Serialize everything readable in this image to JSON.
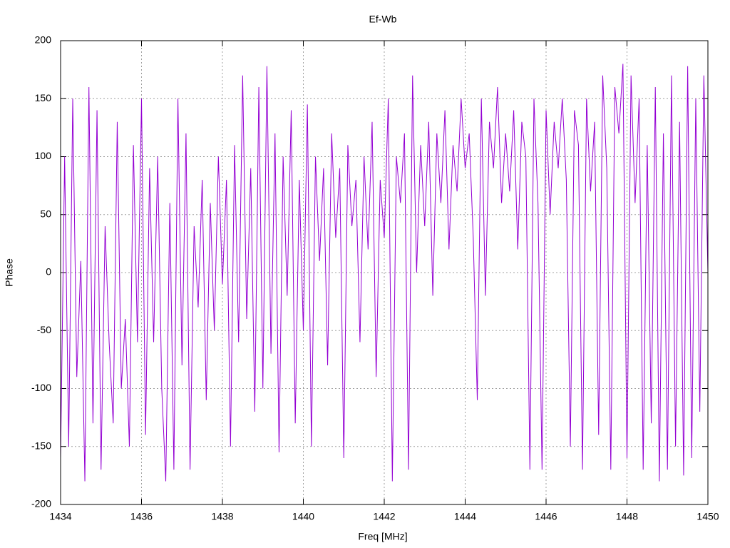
{
  "chart_data": {
    "type": "line",
    "title": "Ef-Wb",
    "x_label": "Freq [MHz]",
    "y_label": "Phase",
    "color": "#9400d3",
    "grid": true,
    "xlim": [
      1434,
      1450
    ],
    "xticks": [
      1434,
      1436,
      1438,
      1440,
      1442,
      1444,
      1446,
      1448,
      1450
    ],
    "ylim": [
      -200,
      200
    ],
    "yticks": [
      -200,
      -150,
      -100,
      -50,
      0,
      50,
      100,
      150,
      200
    ],
    "x": [
      1434,
      1434.1,
      1434.2,
      1434.3,
      1434.4,
      1434.5,
      1434.6,
      1434.7,
      1434.8,
      1434.9,
      1435,
      1435.1,
      1435.2,
      1435.3,
      1435.4,
      1435.5,
      1435.6,
      1435.7,
      1435.8,
      1435.9,
      1436,
      1436.1,
      1436.2,
      1436.3,
      1436.4,
      1436.5,
      1436.6,
      1436.7,
      1436.8,
      1436.9,
      1437,
      1437.1,
      1437.2,
      1437.3,
      1437.4,
      1437.5,
      1437.6,
      1437.7,
      1437.8,
      1437.9,
      1438,
      1438.1,
      1438.2,
      1438.3,
      1438.4,
      1438.5,
      1438.6,
      1438.7,
      1438.8,
      1438.9,
      1439,
      1439.1,
      1439.2,
      1439.3,
      1439.4,
      1439.5,
      1439.6,
      1439.7,
      1439.8,
      1439.9,
      1440,
      1440.1,
      1440.2,
      1440.3,
      1440.4,
      1440.5,
      1440.6,
      1440.7,
      1440.8,
      1440.9,
      1441,
      1441.1,
      1441.2,
      1441.3,
      1441.4,
      1441.5,
      1441.6,
      1441.7,
      1441.8,
      1441.9,
      1442,
      1442.1,
      1442.2,
      1442.3,
      1442.4,
      1442.5,
      1442.6,
      1442.7,
      1442.8,
      1442.9,
      1443,
      1443.1,
      1443.2,
      1443.3,
      1443.4,
      1443.5,
      1443.6,
      1443.7,
      1443.8,
      1443.9,
      1444,
      1444.1,
      1444.2,
      1444.3,
      1444.4,
      1444.5,
      1444.6,
      1444.7,
      1444.8,
      1444.9,
      1445,
      1445.1,
      1445.2,
      1445.3,
      1445.4,
      1445.5,
      1445.6,
      1445.7,
      1445.8,
      1445.9,
      1446,
      1446.1,
      1446.2,
      1446.3,
      1446.4,
      1446.5,
      1446.6,
      1446.7,
      1446.8,
      1446.9,
      1447,
      1447.1,
      1447.2,
      1447.3,
      1447.4,
      1447.5,
      1447.6,
      1447.7,
      1447.8,
      1447.9,
      1448,
      1448.1,
      1448.2,
      1448.3,
      1448.4,
      1448.5,
      1448.6,
      1448.7,
      1448.8,
      1448.9,
      1449,
      1449.1,
      1449.2,
      1449.3,
      1449.4,
      1449.5,
      1449.6,
      1449.7,
      1449.8,
      1449.9,
      1450
    ],
    "values": [
      -160,
      100,
      -150,
      150,
      -90,
      10,
      -180,
      160,
      -130,
      140,
      -170,
      40,
      -60,
      -130,
      130,
      -100,
      -40,
      -150,
      110,
      -60,
      150,
      -140,
      90,
      -60,
      100,
      -100,
      -180,
      60,
      -170,
      150,
      -80,
      120,
      -170,
      40,
      -30,
      80,
      -110,
      60,
      -50,
      100,
      -10,
      80,
      -150,
      110,
      -60,
      170,
      -40,
      90,
      -120,
      160,
      -100,
      178,
      -70,
      120,
      -155,
      100,
      -20,
      140,
      -130,
      80,
      -50,
      145,
      -150,
      100,
      10,
      90,
      -80,
      120,
      30,
      90,
      -160,
      110,
      40,
      80,
      -60,
      100,
      20,
      130,
      -90,
      80,
      30,
      150,
      -180,
      100,
      60,
      120,
      -170,
      170,
      0,
      110,
      40,
      130,
      -20,
      120,
      60,
      140,
      20,
      110,
      70,
      150,
      90,
      120,
      30,
      -110,
      150,
      -20,
      130,
      90,
      160,
      60,
      120,
      70,
      140,
      20,
      130,
      100,
      -170,
      150,
      60,
      -170,
      140,
      50,
      130,
      90,
      150,
      80,
      -150,
      140,
      110,
      -170,
      150,
      70,
      130,
      -140,
      170,
      90,
      -170,
      160,
      120,
      180,
      -160,
      170,
      60,
      150,
      -170,
      110,
      -130,
      160,
      -180,
      120,
      -170,
      170,
      -150,
      130,
      -175,
      178,
      -160,
      150,
      -120,
      170,
      0
    ]
  }
}
